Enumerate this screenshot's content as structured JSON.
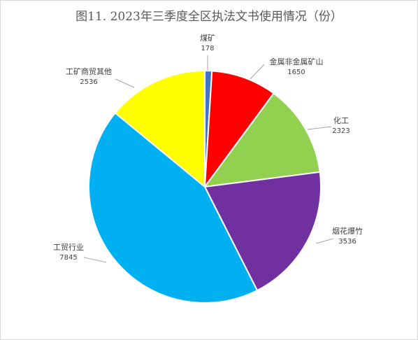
{
  "chart_data": {
    "type": "pie",
    "title": "图11. 2023年三季度全区执法文书使用情况（份）",
    "categories": [
      "煤矿",
      "金属非金属矿山",
      "化工",
      "烟花爆竹",
      "工贸行业",
      "工矿商贸其他"
    ],
    "values": [
      178,
      1650,
      2323,
      3536,
      7845,
      2536
    ],
    "colors": [
      "#4472c4",
      "#ff0000",
      "#92d050",
      "#7030a0",
      "#00b0f0",
      "#ffff00"
    ],
    "start_angle": "top",
    "direction": "clockwise",
    "data_labels": "outside-with-leader-lines",
    "legend": "none"
  }
}
